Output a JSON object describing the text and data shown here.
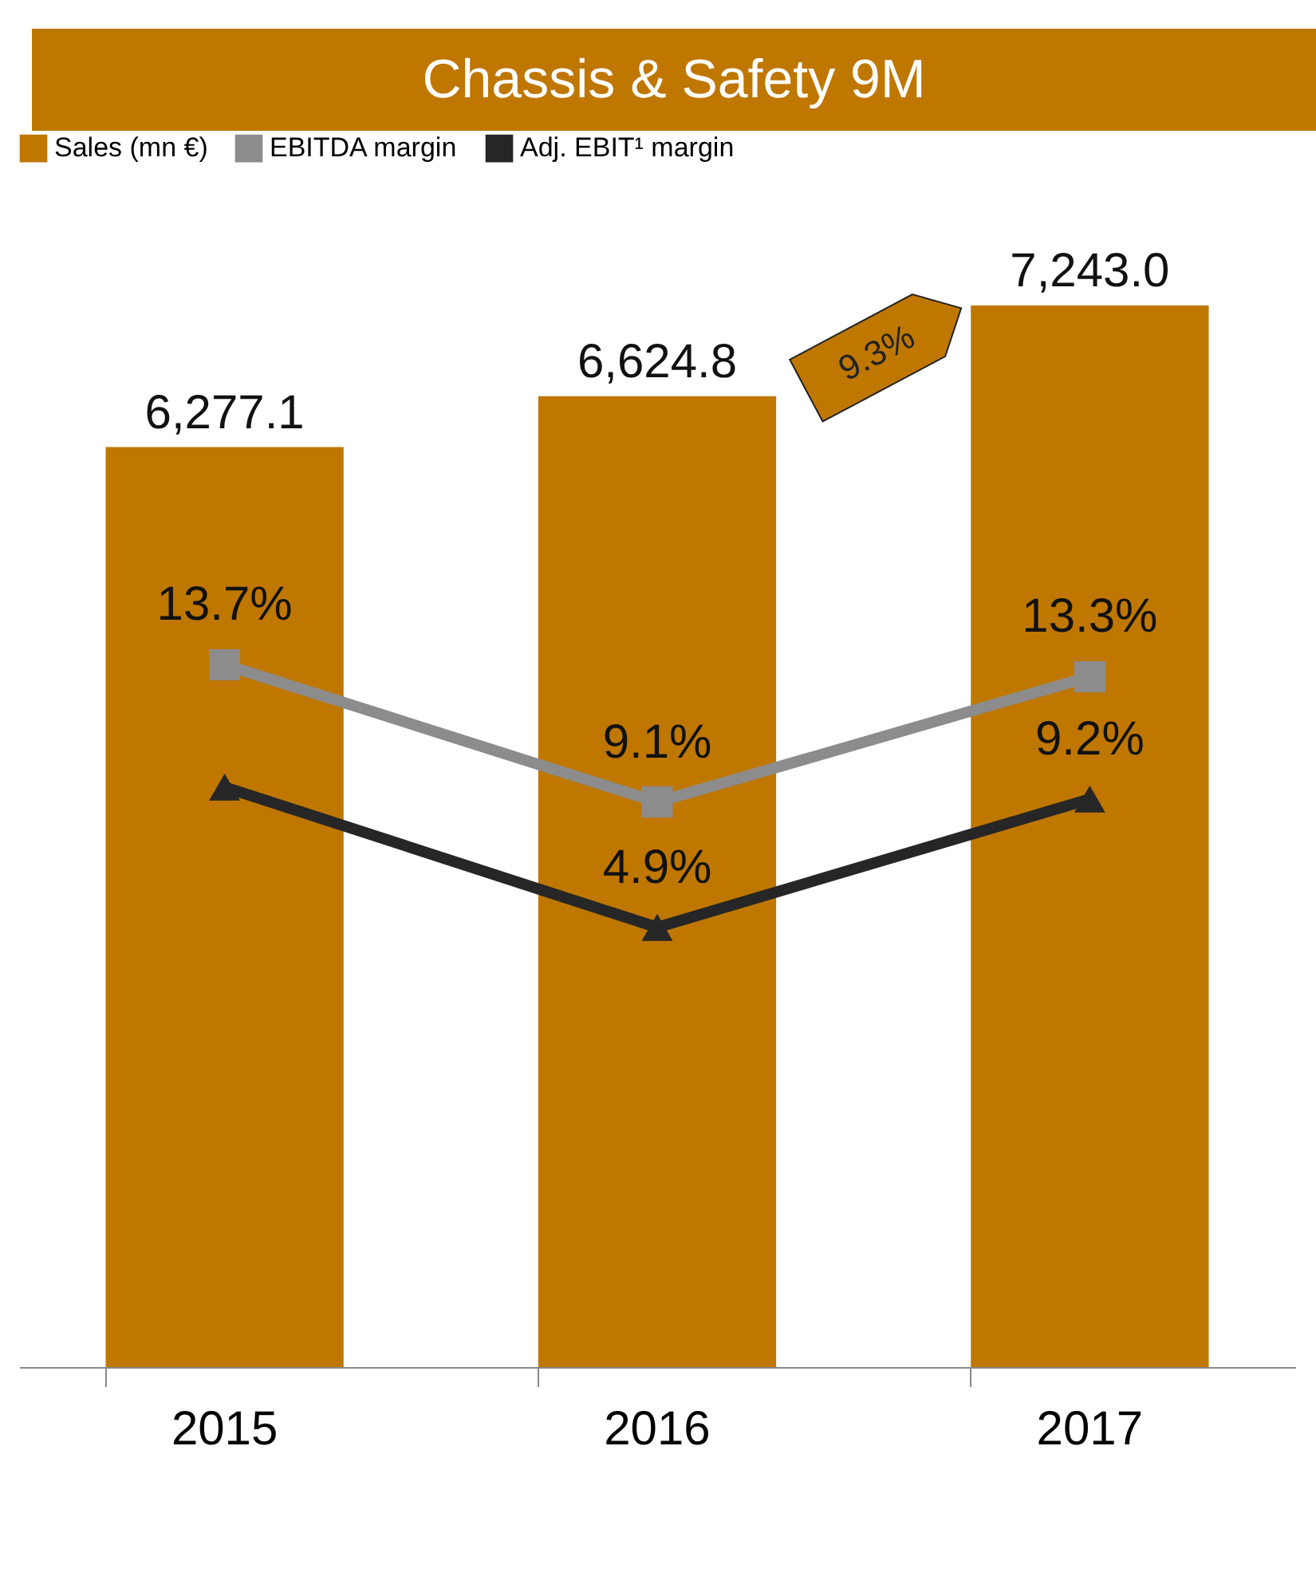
{
  "chart_data": {
    "type": "bar",
    "title": "Chassis & Safety 9M",
    "categories": [
      "2015",
      "2016",
      "2017"
    ],
    "series": [
      {
        "name": "Sales (mn €)",
        "color": "#bf7700",
        "values": [
          6277.1,
          6624.8,
          7243.0
        ],
        "value_labels": [
          "6,277.1",
          "6,624.8",
          "7,243.0"
        ]
      },
      {
        "name": "EBITDA margin",
        "type": "line",
        "axis": "y2",
        "color": "#8c8c8c",
        "marker": "square",
        "values": [
          13.7,
          9.1,
          13.3
        ],
        "value_labels": [
          "13.7%",
          "9.1%",
          "13.3%"
        ]
      },
      {
        "name": "Adj. EBIT¹ margin",
        "type": "line",
        "axis": "y2",
        "color": "#262626",
        "marker": "triangle",
        "values": [
          9.6,
          4.9,
          9.2
        ],
        "value_labels": [
          null,
          "4.9%",
          "9.2%"
        ]
      }
    ],
    "tick_labels": "x",
    "legend": "top",
    "annotations": [
      "9.3%"
    ]
  }
}
